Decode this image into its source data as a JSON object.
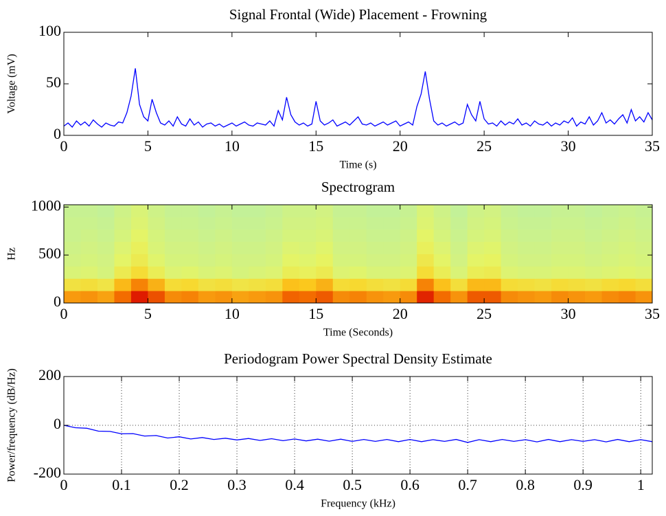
{
  "chart_data": [
    {
      "type": "line",
      "title": "Signal Frontal (Wide) Placement - Frowning",
      "xlabel": "Time (s)",
      "ylabel": "Voltage (mV)",
      "color": "#0000ff",
      "grid": false,
      "xlim": [
        0,
        35
      ],
      "ylim": [
        0,
        100
      ],
      "xticks": [
        0,
        5,
        10,
        15,
        20,
        25,
        30,
        35
      ],
      "yticks": [
        0,
        50,
        100
      ],
      "x": [
        0,
        0.25,
        0.5,
        0.75,
        1,
        1.25,
        1.5,
        1.75,
        2,
        2.25,
        2.5,
        2.75,
        3,
        3.25,
        3.5,
        3.75,
        4,
        4.25,
        4.5,
        4.75,
        5,
        5.25,
        5.5,
        5.75,
        6,
        6.25,
        6.5,
        6.75,
        7,
        7.25,
        7.5,
        7.75,
        8,
        8.25,
        8.5,
        8.75,
        9,
        9.25,
        9.5,
        9.75,
        10,
        10.25,
        10.5,
        10.75,
        11,
        11.25,
        11.5,
        11.75,
        12,
        12.25,
        12.5,
        12.75,
        13,
        13.25,
        13.5,
        13.75,
        14,
        14.25,
        14.5,
        14.75,
        15,
        15.25,
        15.5,
        15.75,
        16,
        16.25,
        16.5,
        16.75,
        17,
        17.25,
        17.5,
        17.75,
        18,
        18.25,
        18.5,
        18.75,
        19,
        19.25,
        19.5,
        19.75,
        20,
        20.25,
        20.5,
        20.75,
        21,
        21.25,
        21.5,
        21.75,
        22,
        22.25,
        22.5,
        22.75,
        23,
        23.25,
        23.5,
        23.75,
        24,
        24.25,
        24.5,
        24.75,
        25,
        25.25,
        25.5,
        25.75,
        26,
        26.25,
        26.5,
        26.75,
        27,
        27.25,
        27.5,
        27.75,
        28,
        28.25,
        28.5,
        28.75,
        29,
        29.25,
        29.5,
        29.75,
        30,
        30.25,
        30.5,
        30.75,
        31,
        31.25,
        31.5,
        31.75,
        32,
        32.25,
        32.5,
        32.75,
        33,
        33.25,
        33.5,
        33.75,
        34,
        34.25,
        34.5,
        34.75,
        35
      ],
      "values": [
        9,
        12,
        8,
        14,
        10,
        13,
        9,
        15,
        11,
        8,
        12,
        10,
        9,
        13,
        12,
        22,
        38,
        65,
        30,
        18,
        14,
        35,
        22,
        12,
        10,
        14,
        9,
        18,
        11,
        9,
        16,
        10,
        13,
        8,
        11,
        12,
        9,
        11,
        8,
        10,
        12,
        9,
        11,
        13,
        10,
        9,
        12,
        11,
        10,
        14,
        9,
        24,
        15,
        37,
        20,
        13,
        10,
        12,
        9,
        11,
        33,
        14,
        10,
        12,
        15,
        9,
        11,
        13,
        10,
        14,
        18,
        11,
        10,
        12,
        9,
        11,
        13,
        10,
        12,
        14,
        9,
        11,
        13,
        10,
        28,
        40,
        62,
        35,
        14,
        10,
        12,
        9,
        11,
        13,
        10,
        12,
        30,
        20,
        14,
        33,
        16,
        11,
        12,
        9,
        14,
        10,
        13,
        11,
        16,
        10,
        12,
        9,
        14,
        11,
        10,
        13,
        9,
        12,
        10,
        14,
        12,
        17,
        9,
        13,
        11,
        18,
        10,
        14,
        22,
        12,
        15,
        11,
        16,
        20,
        12,
        25,
        14,
        18,
        13,
        22,
        15
      ]
    },
    {
      "type": "heatmap",
      "title": "Spectrogram",
      "xlabel": "Time (Seconds)",
      "ylabel": "Hz",
      "xlim": [
        0,
        35
      ],
      "ylim": [
        0,
        1024
      ],
      "xticks": [
        0,
        5,
        10,
        15,
        20,
        25,
        30,
        35
      ],
      "yticks": [
        0,
        500,
        1000
      ],
      "zlim": [
        -65,
        -15
      ],
      "colormap": [
        "#b8f0a8",
        "#e6f464",
        "#fcd020",
        "#f47000",
        "#d80000"
      ],
      "x": [
        0.5,
        1.5,
        2.5,
        3.5,
        4.5,
        5.5,
        6.5,
        7.5,
        8.5,
        9.5,
        10.5,
        11.5,
        12.5,
        13.5,
        14.5,
        15.5,
        16.5,
        17.5,
        18.5,
        19.5,
        20.5,
        21.5,
        22.5,
        23.5,
        24.5,
        25.5,
        26.5,
        27.5,
        28.5,
        29.5,
        30.5,
        31.5,
        32.5,
        33.5,
        34.5
      ],
      "y": [
        64,
        192,
        320,
        448,
        576,
        704,
        832,
        960
      ],
      "z": [
        [
          -33,
          -32,
          -34,
          -27,
          -18,
          -24,
          -31,
          -30,
          -33,
          -32,
          -34,
          -33,
          -32,
          -26,
          -27,
          -25,
          -31,
          -30,
          -32,
          -33,
          -31,
          -19,
          -27,
          -32,
          -25,
          -25,
          -31,
          -32,
          -33,
          -31,
          -32,
          -33,
          -31,
          -30,
          -32
        ],
        [
          -46,
          -45,
          -47,
          -37,
          -30,
          -36,
          -44,
          -43,
          -46,
          -45,
          -47,
          -46,
          -45,
          -38,
          -39,
          -36,
          -44,
          -43,
          -45,
          -46,
          -44,
          -30,
          -38,
          -45,
          -37,
          -37,
          -44,
          -45,
          -46,
          -44,
          -45,
          -46,
          -44,
          -43,
          -45
        ],
        [
          -56,
          -55,
          -57,
          -49,
          -44,
          -50,
          -55,
          -54,
          -56,
          -55,
          -57,
          -56,
          -55,
          -50,
          -51,
          -49,
          -55,
          -54,
          -56,
          -56,
          -55,
          -44,
          -50,
          -56,
          -50,
          -49,
          -55,
          -56,
          -56,
          -55,
          -55,
          -56,
          -55,
          -54,
          -55
        ],
        [
          -58,
          -57,
          -58,
          -53,
          -49,
          -54,
          -57,
          -57,
          -58,
          -57,
          -58,
          -58,
          -57,
          -53,
          -54,
          -52,
          -57,
          -57,
          -58,
          -58,
          -57,
          -48,
          -53,
          -58,
          -53,
          -52,
          -57,
          -58,
          -58,
          -57,
          -57,
          -58,
          -57,
          -56,
          -57
        ],
        [
          -59,
          -58,
          -59,
          -55,
          -51,
          -56,
          -58,
          -58,
          -59,
          -58,
          -59,
          -59,
          -58,
          -55,
          -56,
          -54,
          -58,
          -58,
          -59,
          -59,
          -58,
          -51,
          -55,
          -59,
          -55,
          -54,
          -58,
          -59,
          -59,
          -58,
          -58,
          -59,
          -58,
          -57,
          -58
        ],
        [
          -60,
          -59,
          -60,
          -57,
          -53,
          -57,
          -59,
          -59,
          -60,
          -59,
          -60,
          -60,
          -59,
          -57,
          -57,
          -56,
          -59,
          -59,
          -60,
          -60,
          -59,
          -53,
          -57,
          -60,
          -57,
          -56,
          -59,
          -60,
          -60,
          -59,
          -59,
          -60,
          -59,
          -58,
          -59
        ],
        [
          -60,
          -60,
          -61,
          -58,
          -55,
          -58,
          -60,
          -60,
          -61,
          -60,
          -61,
          -61,
          -60,
          -58,
          -58,
          -57,
          -60,
          -60,
          -61,
          -61,
          -60,
          -55,
          -58,
          -61,
          -58,
          -57,
          -60,
          -61,
          -61,
          -60,
          -60,
          -61,
          -60,
          -59,
          -60
        ],
        [
          -61,
          -61,
          -62,
          -59,
          -56,
          -59,
          -61,
          -61,
          -62,
          -61,
          -62,
          -62,
          -61,
          -59,
          -59,
          -58,
          -61,
          -61,
          -62,
          -62,
          -61,
          -56,
          -59,
          -62,
          -59,
          -58,
          -61,
          -62,
          -62,
          -61,
          -61,
          -62,
          -61,
          -60,
          -61
        ]
      ]
    },
    {
      "type": "line",
      "title": "Periodogram Power Spectral Density Estimate",
      "xlabel": "Frequency (kHz)",
      "ylabel": "Power/frequency (dB/Hz)",
      "color": "#0000ff",
      "grid": true,
      "xlim": [
        0,
        1.02
      ],
      "ylim": [
        -200,
        200
      ],
      "xticks": [
        0,
        0.1,
        0.2,
        0.3,
        0.4,
        0.5,
        0.6,
        0.7,
        0.8,
        0.9,
        1
      ],
      "yticks": [
        -200,
        0,
        200
      ],
      "x": [
        0,
        0.02,
        0.04,
        0.06,
        0.08,
        0.1,
        0.12,
        0.14,
        0.16,
        0.18,
        0.2,
        0.22,
        0.24,
        0.26,
        0.28,
        0.3,
        0.32,
        0.34,
        0.36,
        0.38,
        0.4,
        0.42,
        0.44,
        0.46,
        0.48,
        0.5,
        0.52,
        0.54,
        0.56,
        0.58,
        0.6,
        0.62,
        0.64,
        0.66,
        0.68,
        0.7,
        0.72,
        0.74,
        0.76,
        0.78,
        0.8,
        0.82,
        0.84,
        0.86,
        0.88,
        0.9,
        0.92,
        0.94,
        0.96,
        0.98,
        1,
        1.02
      ],
      "values": [
        0,
        -10,
        -12,
        -24,
        -25,
        -35,
        -34,
        -44,
        -42,
        -52,
        -47,
        -56,
        -50,
        -58,
        -53,
        -60,
        -54,
        -62,
        -55,
        -63,
        -56,
        -64,
        -57,
        -65,
        -57,
        -66,
        -58,
        -66,
        -58,
        -67,
        -58,
        -67,
        -59,
        -66,
        -58,
        -70,
        -59,
        -67,
        -58,
        -66,
        -59,
        -68,
        -58,
        -67,
        -59,
        -66,
        -59,
        -68,
        -58,
        -67,
        -59,
        -67
      ]
    }
  ]
}
